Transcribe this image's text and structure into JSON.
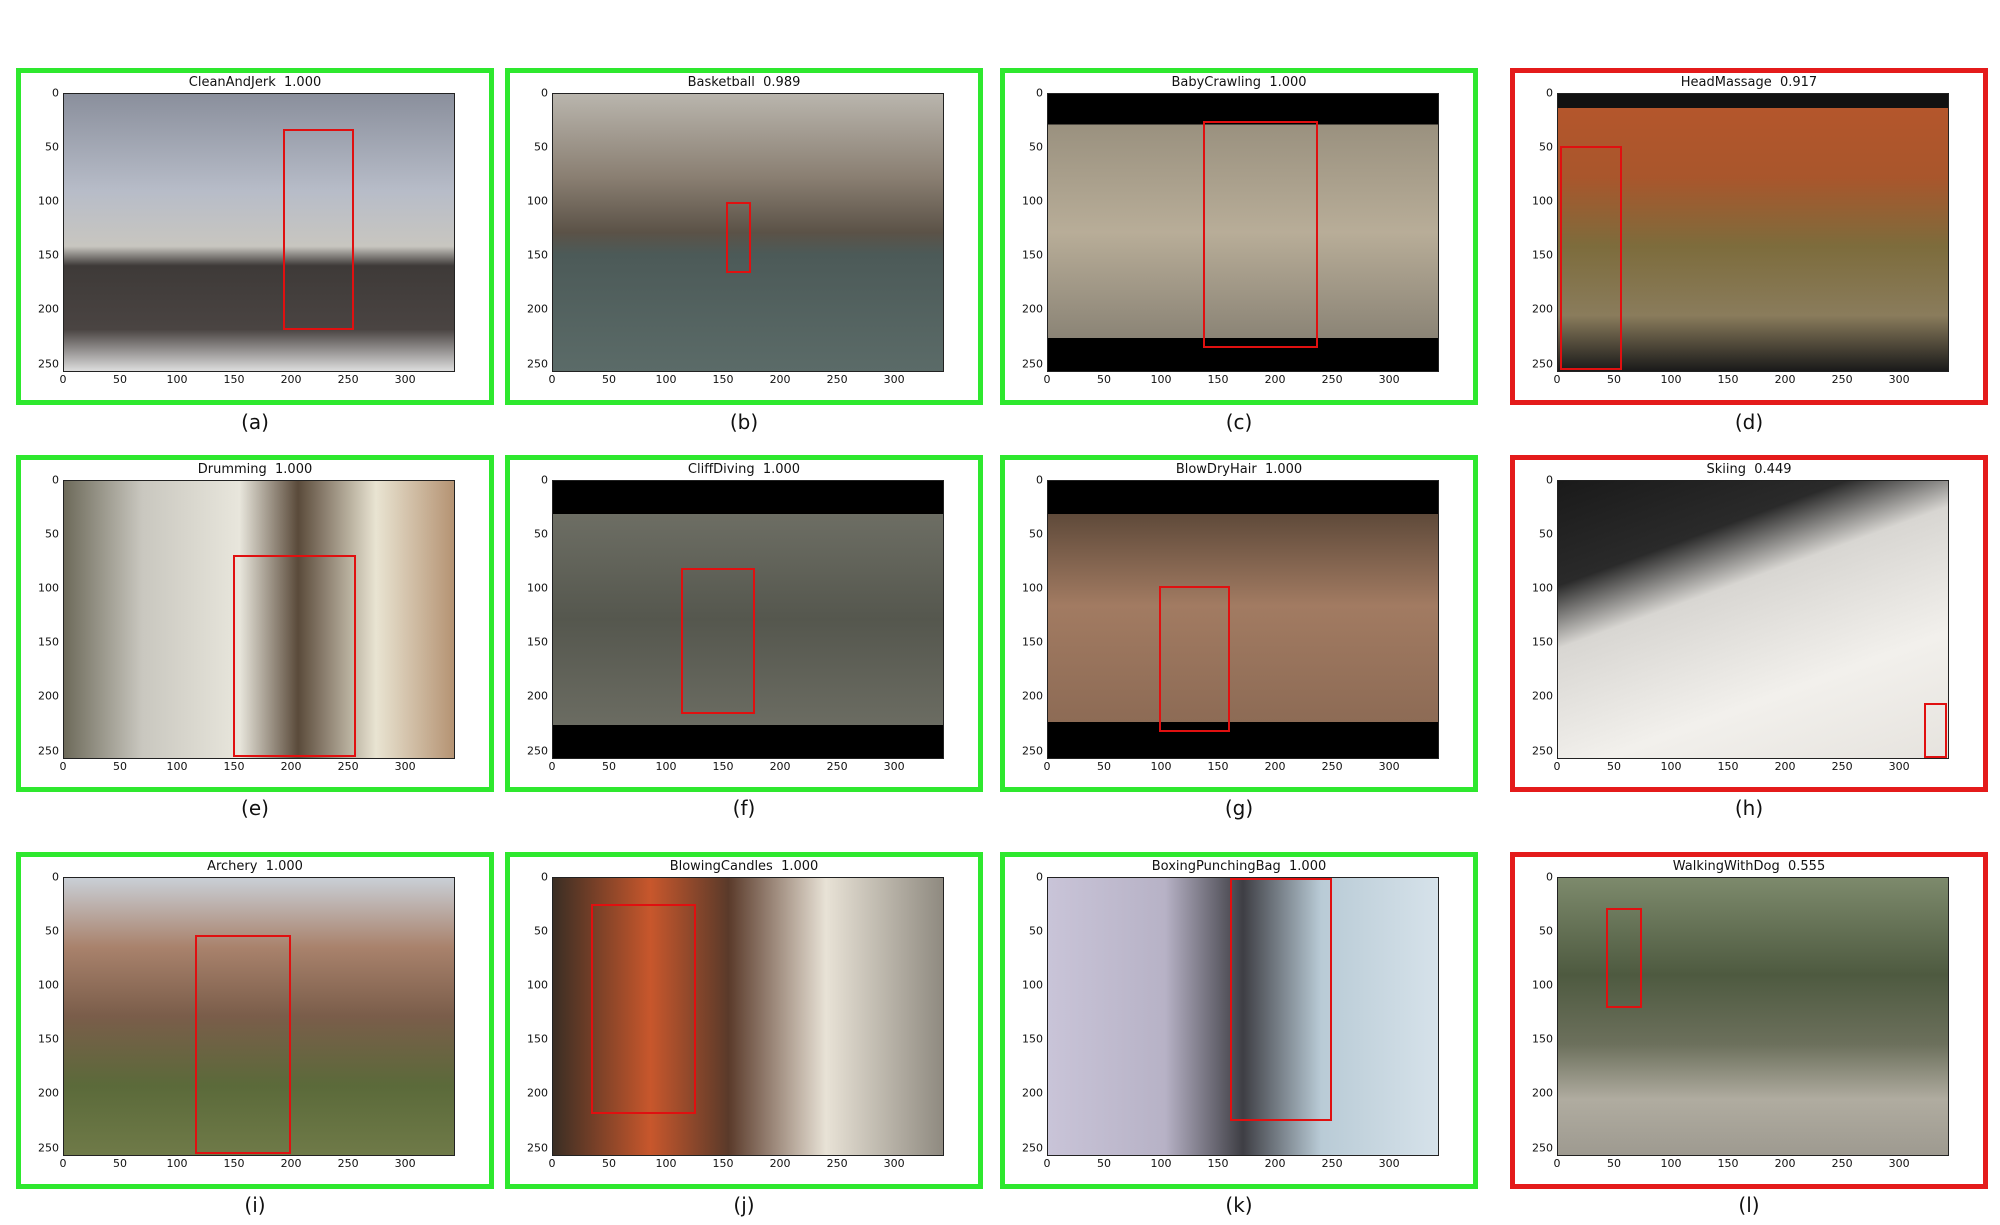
{
  "panels": [
    {
      "id": "a",
      "caption": "(a)",
      "label": "CleanAndJerk",
      "score": "1.000",
      "correct": true,
      "box": [
        192,
        32,
        254,
        218
      ],
      "scene": "linear-gradient(180deg,#8a8f9c 0%,#b7bcc8 35%,#c8c6c0 55%,#3e3a38 62%,#4a4442 85%,#ddd 100%)"
    },
    {
      "id": "b",
      "caption": "(b)",
      "label": "Basketball",
      "score": "0.989",
      "correct": true,
      "box": [
        152,
        100,
        174,
        165
      ],
      "scene": "linear-gradient(180deg,#b9b5ad 0%,#8a7f72 30%,#5b5247 50%,#4c5a58 58%,#5b6b68 100%)"
    },
    {
      "id": "c",
      "caption": "(c)",
      "label": "BabyCrawling",
      "score": "1.000",
      "correct": true,
      "box": [
        136,
        25,
        237,
        235
      ],
      "scene": "linear-gradient(180deg,#000 0%,#000 11%,#9a917f 11%,#b8ad98 50%,#8b8476 88%,#000 88%,#000 100%)"
    },
    {
      "id": "d",
      "caption": "(d)",
      "label": "HeadMassage",
      "score": "0.917",
      "correct": false,
      "box": [
        2,
        48,
        56,
        255
      ],
      "scene": "linear-gradient(180deg,#111 0%,#111 5%,#b4562c 5%,#a9562c 30%,#7d6c3c 55%,#8a7c5c 80%,#1a1a1a 100%)"
    },
    {
      "id": "e",
      "caption": "(e)",
      "label": "Drumming",
      "score": "1.000",
      "correct": true,
      "box": [
        148,
        68,
        256,
        255
      ],
      "scene": "linear-gradient(90deg,#6d6a5a 0%,#c9c7bf 20%,#e8e6dc 45%,#5a4a3a 60%,#e9e4d2 80%,#b59373 100%)"
    },
    {
      "id": "f",
      "caption": "(f)",
      "label": "CliffDiving",
      "score": "1.000",
      "correct": true,
      "box": [
        112,
        80,
        177,
        215
      ],
      "scene": "linear-gradient(180deg,#000 0%,#000 12%,#6d6e64 12%,#55574e 50%,#6b6c62 88%,#000 88%,#000 100%)"
    },
    {
      "id": "g",
      "caption": "(g)",
      "label": "BlowDryHair",
      "score": "1.000",
      "correct": true,
      "box": [
        97,
        97,
        160,
        232
      ],
      "scene": "linear-gradient(180deg,#000 0%,#000 12%,#5f4a3a 12%,#a27b62 45%,#8d6b55 87%,#000 87%,#000 100%)"
    },
    {
      "id": "h",
      "caption": "(h)",
      "label": "Skiing",
      "score": "0.449",
      "correct": false,
      "box": [
        321,
        205,
        341,
        256
      ],
      "scene": "linear-gradient(160deg,#1a1a1a 0%,#2a2a2a 25%,#d8d6d2 40%,#f2f0ec 70%,#e6e3de 100%)"
    },
    {
      "id": "i",
      "caption": "(i)",
      "label": "Archery",
      "score": "1.000",
      "correct": true,
      "box": [
        115,
        53,
        199,
        255
      ],
      "scene": "linear-gradient(180deg,#c9cfd6 0%,#a9826c 25%,#7a5d4a 50%,#5b6a3a 75%,#6f7a48 100%)"
    },
    {
      "id": "j",
      "caption": "(j)",
      "label": "BlowingCandles",
      "score": "1.000",
      "correct": true,
      "box": [
        33,
        24,
        125,
        218
      ],
      "scene": "linear-gradient(90deg,#3a2e24 0%,#c8572c 25%,#5a3a2a 45%,#e8e2d6 70%,#8f8a80 100%)"
    },
    {
      "id": "k",
      "caption": "(k)",
      "label": "BoxingPunchingBag",
      "score": "1.000",
      "correct": true,
      "box": [
        160,
        0,
        249,
        225
      ],
      "scene": "linear-gradient(90deg,#c9c4d8 0%,#b7b2c6 30%,#3e3e44 50%,#b9cbd6 70%,#d6e2ea 100%)"
    },
    {
      "id": "l",
      "caption": "(l)",
      "label": "WalkingWithDog",
      "score": "0.555",
      "correct": false,
      "box": [
        42,
        28,
        74,
        120
      ],
      "scene": "linear-gradient(180deg,#7d8a6c 0%,#4e5a40 35%,#6c705c 60%,#b0aca0 80%,#9e9a90 100%)"
    }
  ],
  "axes": {
    "x_ticks": [
      "0",
      "50",
      "100",
      "150",
      "200",
      "250",
      "300"
    ],
    "y_ticks": [
      "0",
      "50",
      "100",
      "150",
      "200",
      "250"
    ],
    "x_max": 342,
    "y_max": 256
  },
  "colors": {
    "correct": "#2ee82e",
    "incorrect": "#e41b1b",
    "box": "#e01010"
  }
}
